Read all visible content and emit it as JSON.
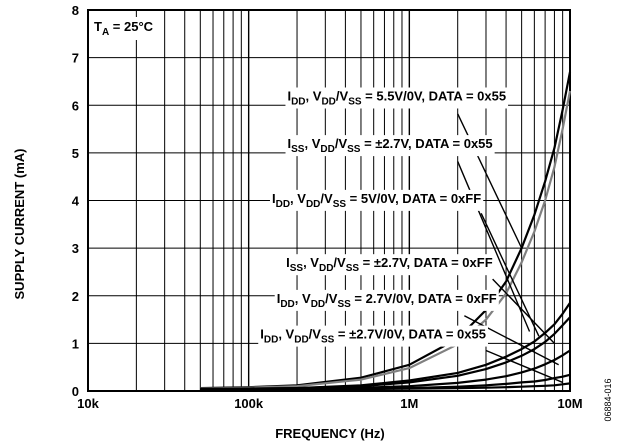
{
  "chart_data": {
    "type": "line",
    "xscale": "log",
    "xlim": [
      10000,
      10000000
    ],
    "ylim": [
      0,
      8
    ],
    "xlabel": "FREQUENCY (Hz)",
    "ylabel": "SUPPLY CURRENT (mA)",
    "x_ticks": [
      {
        "value": 10000,
        "label": "10k"
      },
      {
        "value": 100000,
        "label": "100k"
      },
      {
        "value": 1000000,
        "label": "1M"
      },
      {
        "value": 10000000,
        "label": "10M"
      }
    ],
    "y_ticks": [
      {
        "value": 0,
        "label": "0"
      },
      {
        "value": 1,
        "label": "1"
      },
      {
        "value": 2,
        "label": "2"
      },
      {
        "value": 3,
        "label": "3"
      },
      {
        "value": 4,
        "label": "4"
      },
      {
        "value": 5,
        "label": "5"
      },
      {
        "value": 6,
        "label": "6"
      },
      {
        "value": 7,
        "label": "7"
      },
      {
        "value": 8,
        "label": "8"
      }
    ],
    "grid": true,
    "condition": {
      "main": "T",
      "sub": "A",
      "rest": " = 25°C"
    },
    "series": [
      {
        "color": "#000000",
        "x": [
          50000,
          100000,
          200000,
          500000,
          1000000,
          2000000,
          3000000,
          4000000,
          5000000,
          6000000,
          7000000,
          8000000,
          9000000,
          10000000
        ],
        "y": [
          0.06,
          0.08,
          0.12,
          0.28,
          0.55,
          1.1,
          1.7,
          2.3,
          3.0,
          3.7,
          4.4,
          5.1,
          5.9,
          6.7
        ]
      },
      {
        "color": "#808080",
        "x": [
          50000,
          100000,
          200000,
          500000,
          1000000,
          2000000,
          3000000,
          4000000,
          5000000,
          6000000,
          7000000,
          8000000,
          9000000,
          10000000
        ],
        "y": [
          0.05,
          0.07,
          0.1,
          0.24,
          0.48,
          0.98,
          1.5,
          2.05,
          2.7,
          3.35,
          4.0,
          4.7,
          5.5,
          6.3
        ]
      },
      {
        "color": "#000000",
        "x": [
          50000,
          100000,
          200000,
          500000,
          1000000,
          2000000,
          3000000,
          4000000,
          5000000,
          6000000,
          7000000,
          8000000,
          9000000,
          10000000
        ],
        "y": [
          0.04,
          0.05,
          0.06,
          0.12,
          0.22,
          0.38,
          0.55,
          0.72,
          0.88,
          1.04,
          1.22,
          1.4,
          1.62,
          1.85
        ]
      },
      {
        "color": "#000000",
        "x": [
          50000,
          100000,
          200000,
          500000,
          1000000,
          2000000,
          3000000,
          4000000,
          5000000,
          6000000,
          7000000,
          8000000,
          9000000,
          10000000
        ],
        "y": [
          0.04,
          0.05,
          0.06,
          0.1,
          0.18,
          0.32,
          0.46,
          0.6,
          0.74,
          0.88,
          1.03,
          1.2,
          1.38,
          1.55
        ]
      },
      {
        "color": "#000000",
        "x": [
          50000,
          100000,
          200000,
          500000,
          1000000,
          2000000,
          3000000,
          4000000,
          5000000,
          6000000,
          7000000,
          8000000,
          9000000,
          10000000
        ],
        "y": [
          0.03,
          0.04,
          0.05,
          0.07,
          0.1,
          0.17,
          0.24,
          0.31,
          0.39,
          0.47,
          0.56,
          0.65,
          0.75,
          0.85
        ]
      },
      {
        "color": "#000000",
        "x": [
          50000,
          100000,
          200000,
          500000,
          1000000,
          2000000,
          3000000,
          4000000,
          5000000,
          6000000,
          7000000,
          8000000,
          9000000,
          10000000
        ],
        "y": [
          0.02,
          0.03,
          0.04,
          0.05,
          0.06,
          0.09,
          0.12,
          0.15,
          0.18,
          0.2,
          0.23,
          0.27,
          0.3,
          0.34
        ]
      },
      {
        "color": "#000000",
        "x": [
          50000,
          100000,
          200000,
          500000,
          1000000,
          2000000,
          3000000,
          4000000,
          5000000,
          6000000,
          7000000,
          8000000,
          9000000,
          10000000
        ],
        "y": [
          0.02,
          0.02,
          0.03,
          0.04,
          0.05,
          0.06,
          0.07,
          0.08,
          0.09,
          0.1,
          0.11,
          0.12,
          0.14,
          0.16
        ]
      }
    ],
    "annotations": [
      {
        "parts": [
          {
            "t": "I"
          },
          {
            "t": "DD",
            "sub": true
          },
          {
            "t": ", V"
          },
          {
            "t": "DD",
            "sub": true
          },
          {
            "t": "/V"
          },
          {
            "t": "SS",
            "sub": true
          },
          {
            "t": " = 5.5V/0V, DATA = 0x55"
          }
        ],
        "at": [
          4000000,
          6.1
        ],
        "anchor": "end",
        "from": [
          2000000,
          5.82
        ],
        "to": [
          5000000,
          3.0
        ]
      },
      {
        "parts": [
          {
            "t": "I"
          },
          {
            "t": "SS",
            "sub": true
          },
          {
            "t": ", V"
          },
          {
            "t": "DD",
            "sub": true
          },
          {
            "t": "/V"
          },
          {
            "t": "SS",
            "sub": true
          },
          {
            "t": " = ±2.7V, DATA = 0x55"
          }
        ],
        "at": [
          3300000,
          5.1
        ],
        "anchor": "end",
        "from": [
          2000000,
          4.82
        ],
        "to": [
          5600000,
          1.25
        ]
      },
      {
        "parts": [
          {
            "t": "I"
          },
          {
            "t": "DD",
            "sub": true
          },
          {
            "t": ", V"
          },
          {
            "t": "DD",
            "sub": true
          },
          {
            "t": "/V"
          },
          {
            "t": "SS",
            "sub": true
          },
          {
            "t": " = 5V/0V, DATA = 0xFF"
          }
        ],
        "at": [
          2800000,
          3.95
        ],
        "anchor": "end",
        "from": [
          2800000,
          3.73
        ],
        "to": [
          6400000,
          1.15
        ]
      },
      {
        "parts": [
          {
            "t": "I"
          },
          {
            "t": "SS",
            "sub": true
          },
          {
            "t": ", V"
          },
          {
            "t": "DD",
            "sub": true
          },
          {
            "t": "/V"
          },
          {
            "t": "SS",
            "sub": true
          },
          {
            "t": " = ±2.7V, DATA = 0xFF"
          }
        ],
        "at": [
          3300000,
          2.6
        ],
        "anchor": "end",
        "from": [
          3300000,
          2.35
        ],
        "to": [
          8000000,
          1.0
        ]
      },
      {
        "parts": [
          {
            "t": "I"
          },
          {
            "t": "DD",
            "sub": true
          },
          {
            "t": ", V"
          },
          {
            "t": "DD",
            "sub": true
          },
          {
            "t": "/V"
          },
          {
            "t": "SS",
            "sub": true
          },
          {
            "t": " = 2.7V/0V, DATA = 0xFF"
          }
        ],
        "at": [
          3500000,
          1.85
        ],
        "anchor": "end",
        "from": [
          2200000,
          1.58
        ],
        "to": [
          8500000,
          0.55
        ]
      },
      {
        "parts": [
          {
            "t": "I"
          },
          {
            "t": "DD",
            "sub": true
          },
          {
            "t": ", V"
          },
          {
            "t": "DD",
            "sub": true
          },
          {
            "t": "/V"
          },
          {
            "t": "SS",
            "sub": true
          },
          {
            "t": " = ±2.7V/0V, DATA = 0x55"
          }
        ],
        "at": [
          3000000,
          1.1
        ],
        "anchor": "end",
        "from": [
          3000000,
          0.85
        ],
        "to": [
          9000000,
          0.18
        ]
      }
    ],
    "figure_id": "06884-016"
  }
}
